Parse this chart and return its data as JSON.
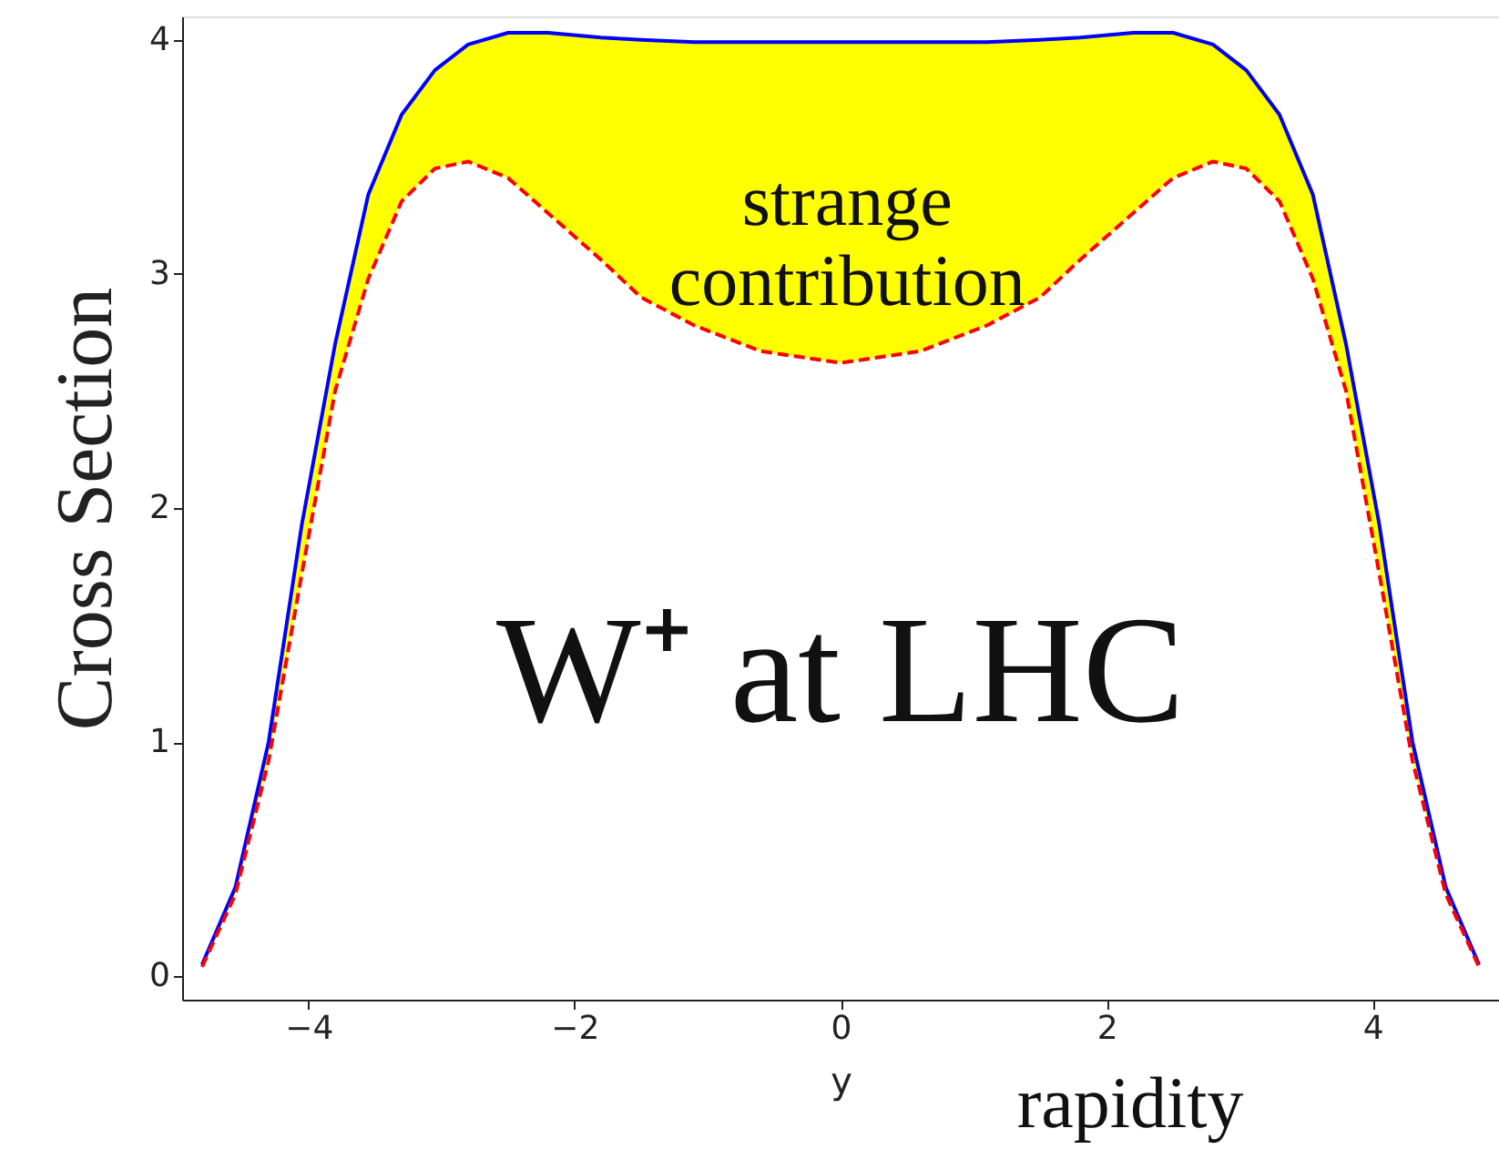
{
  "chart_data": {
    "type": "line",
    "xlabel": "y",
    "ylabel": "Cross Section",
    "x": [
      -4.8,
      -4.55,
      -4.3,
      -4.05,
      -3.8,
      -3.55,
      -3.3,
      -3.05,
      -2.8,
      -2.5,
      -2.2,
      -1.8,
      -1.5,
      -1.1,
      -0.6,
      0,
      0.6,
      1.1,
      1.5,
      1.8,
      2.2,
      2.5,
      2.8,
      3.05,
      3.3,
      3.55,
      3.8,
      4.05,
      4.3,
      4.55,
      4.8
    ],
    "series": [
      {
        "type": "area",
        "color": "#ffff00",
        "values": [
          0.05,
          0.38,
          1.0,
          1.93,
          2.7,
          3.34,
          3.68,
          3.87,
          3.98,
          4.03,
          4.03,
          4.01,
          4.0,
          3.99,
          3.99,
          3.99,
          3.99,
          3.99,
          4.0,
          4.01,
          4.03,
          4.03,
          3.98,
          3.87,
          3.68,
          3.34,
          2.7,
          1.93,
          1.0,
          0.38,
          0.05
        ]
      },
      {
        "color": "#0000ff",
        "line_style": "solid",
        "values": [
          0.05,
          0.38,
          1.0,
          1.93,
          2.7,
          3.34,
          3.68,
          3.87,
          3.98,
          4.03,
          4.03,
          4.01,
          4.0,
          3.99,
          3.99,
          3.99,
          3.99,
          3.99,
          4.0,
          4.01,
          4.03,
          4.03,
          3.98,
          3.87,
          3.68,
          3.34,
          2.7,
          1.93,
          1.0,
          0.38,
          0.05
        ]
      },
      {
        "color": "#ff0000",
        "line_style": "dashed",
        "values": [
          0.04,
          0.35,
          0.92,
          1.72,
          2.5,
          2.98,
          3.31,
          3.45,
          3.48,
          3.41,
          3.26,
          3.06,
          2.9,
          2.78,
          2.67,
          2.62,
          2.67,
          2.78,
          2.9,
          3.06,
          3.26,
          3.41,
          3.48,
          3.45,
          3.31,
          2.98,
          2.5,
          1.72,
          0.92,
          0.35,
          0.04
        ]
      }
    ],
    "xlim": [
      -4.95,
      4.95
    ],
    "xticks": [
      -4,
      -2,
      0,
      2,
      4
    ],
    "ylim": [
      -0.1,
      4.1
    ],
    "yticks": [
      0,
      1,
      2,
      3,
      4
    ],
    "annotations": [
      "strange contribution",
      "W⁺ at LHC",
      "rapidity"
    ]
  }
}
